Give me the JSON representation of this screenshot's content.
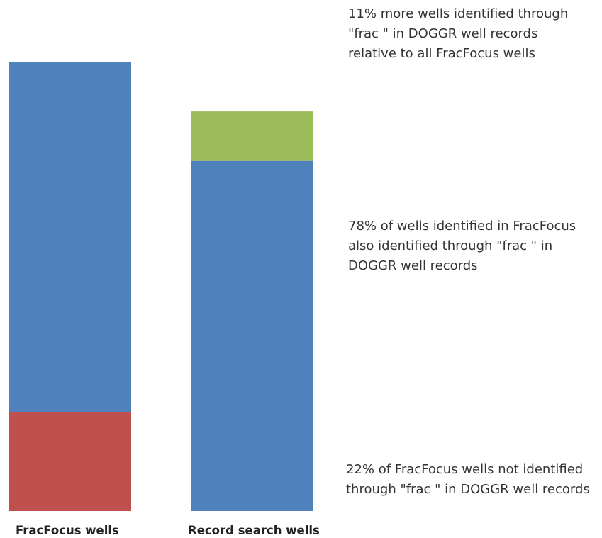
{
  "chart_data": {
    "type": "bar",
    "stacked": true,
    "categories": [
      "FracFocus wells",
      "Record search wells"
    ],
    "series": [
      {
        "values": [
          22,
          0
        ],
        "color": "#c0504d"
      },
      {
        "values": [
          78,
          78
        ],
        "color": "#4f81bd"
      },
      {
        "values": [
          0,
          11
        ],
        "color": "#9bbb59"
      }
    ],
    "annotations": [
      "11% more wells identified  through \"frac \" in DOGGR well records relative to all FracFocus wells",
      "78% of wells identified in FracFocus also identified through \"frac \" in DOGGR well records",
      "22% of FracFocus wells not identified through \"frac \" in DOGGR well records"
    ],
    "annotation_lines": [
      [
        "11% more wells identified  through",
        "\"frac \" in DOGGR well records",
        "relative to all FracFocus wells"
      ],
      [
        "78% of wells identified in FracFocus",
        "also identified through \"frac \" in",
        "DOGGR well records"
      ],
      [
        "22% of FracFocus wells not identified",
        "through \"frac \" in DOGGR well records"
      ]
    ],
    "title": "",
    "xlabel": "",
    "ylabel": "",
    "ylim": [
      0,
      111
    ],
    "grid": false,
    "axes_visible": false
  }
}
